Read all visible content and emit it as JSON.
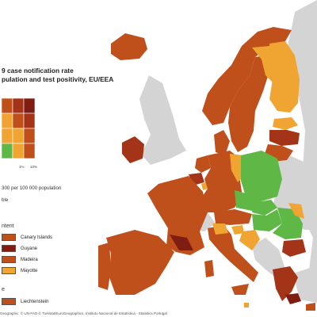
{
  "title_lines": [
    "9 case notification rate",
    "pulation and test positivity, EU/EEA"
  ],
  "matrix": {
    "cells": [
      [
        "#c0501b",
        "#a33418",
        "#7f1d12"
      ],
      [
        "#f0a431",
        "#c0501b",
        "#a33418"
      ],
      [
        "#f0a431",
        "#f0a431",
        "#c0501b"
      ],
      [
        "#5fb846",
        "#f0a431",
        "#c0501b"
      ]
    ],
    "axis_ticks": [
      "1%",
      "10%"
    ]
  },
  "notes": [
    "300 per 100 000 population",
    "ble"
  ],
  "outermost_section_label": "ntent",
  "outermost_regions": [
    {
      "name": "Canary Islands",
      "color": "#c0501b"
    },
    {
      "name": "Guyane",
      "color": "#7f1d12"
    },
    {
      "name": "Madeira",
      "color": "#c0501b"
    },
    {
      "name": "Mayotte",
      "color": "#f0a431"
    }
  ],
  "microstate_section_label": "e",
  "microstates": [
    {
      "name": "Liechtenstein",
      "color": "#c0501b"
    }
  ],
  "footer": "Geographic: © UN-FAO © Turkstat/EuroGeographics, Instituto Nacional de Estatística - Statistics Portugal",
  "colors": {
    "green": "#5fb846",
    "orange": "#f0a431",
    "red": "#c0501b",
    "dark_red": "#a33418",
    "darkest_red": "#7f1d12",
    "non_eu": "#d4d4d4",
    "sea": "#ffffff"
  }
}
